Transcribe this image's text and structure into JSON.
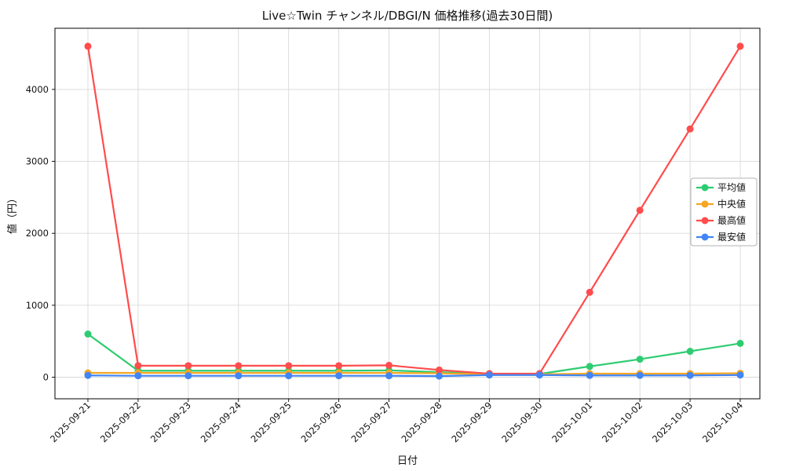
{
  "figure": {
    "background": "#ffffff",
    "plot_border_color": "#000000",
    "grid_color": "#d9d9d9"
  },
  "chart_data": {
    "type": "line",
    "title": "Live☆Twin チャンネル/DBGI/N 価格推移(過去30日間)",
    "xlabel": "日付",
    "ylabel": "値（円）",
    "grid": true,
    "legend_position": "center right",
    "ylim": [
      -300,
      4850
    ],
    "yticks": [
      0,
      1000,
      2000,
      3000,
      4000
    ],
    "categories": [
      "2025-09-21",
      "2025-09-22",
      "2025-09-23",
      "2025-09-24",
      "2025-09-25",
      "2025-09-26",
      "2025-09-27",
      "2025-09-28",
      "2025-09-29",
      "2025-09-30",
      "2025-10-01",
      "2025-10-02",
      "2025-10-03",
      "2025-10-04"
    ],
    "series": [
      {
        "name": "平均値",
        "id": "series-average",
        "color": "#2ecc71",
        "values": [
          600,
          90,
          90,
          90,
          90,
          90,
          95,
          70,
          45,
          45,
          150,
          250,
          360,
          470
        ]
      },
      {
        "name": "中央値",
        "id": "series-median",
        "color": "#f5a623",
        "values": [
          60,
          60,
          60,
          60,
          60,
          60,
          60,
          55,
          40,
          40,
          50,
          50,
          50,
          55
        ]
      },
      {
        "name": "最高値",
        "id": "series-max",
        "color": "#ff4c4c",
        "values": [
          4600,
          160,
          160,
          160,
          160,
          160,
          165,
          100,
          50,
          50,
          1180,
          2320,
          3450,
          4600
        ]
      },
      {
        "name": "最安値",
        "id": "series-min",
        "color": "#4285f4",
        "values": [
          25,
          20,
          20,
          20,
          20,
          20,
          20,
          15,
          30,
          30,
          25,
          25,
          25,
          30
        ]
      }
    ]
  }
}
